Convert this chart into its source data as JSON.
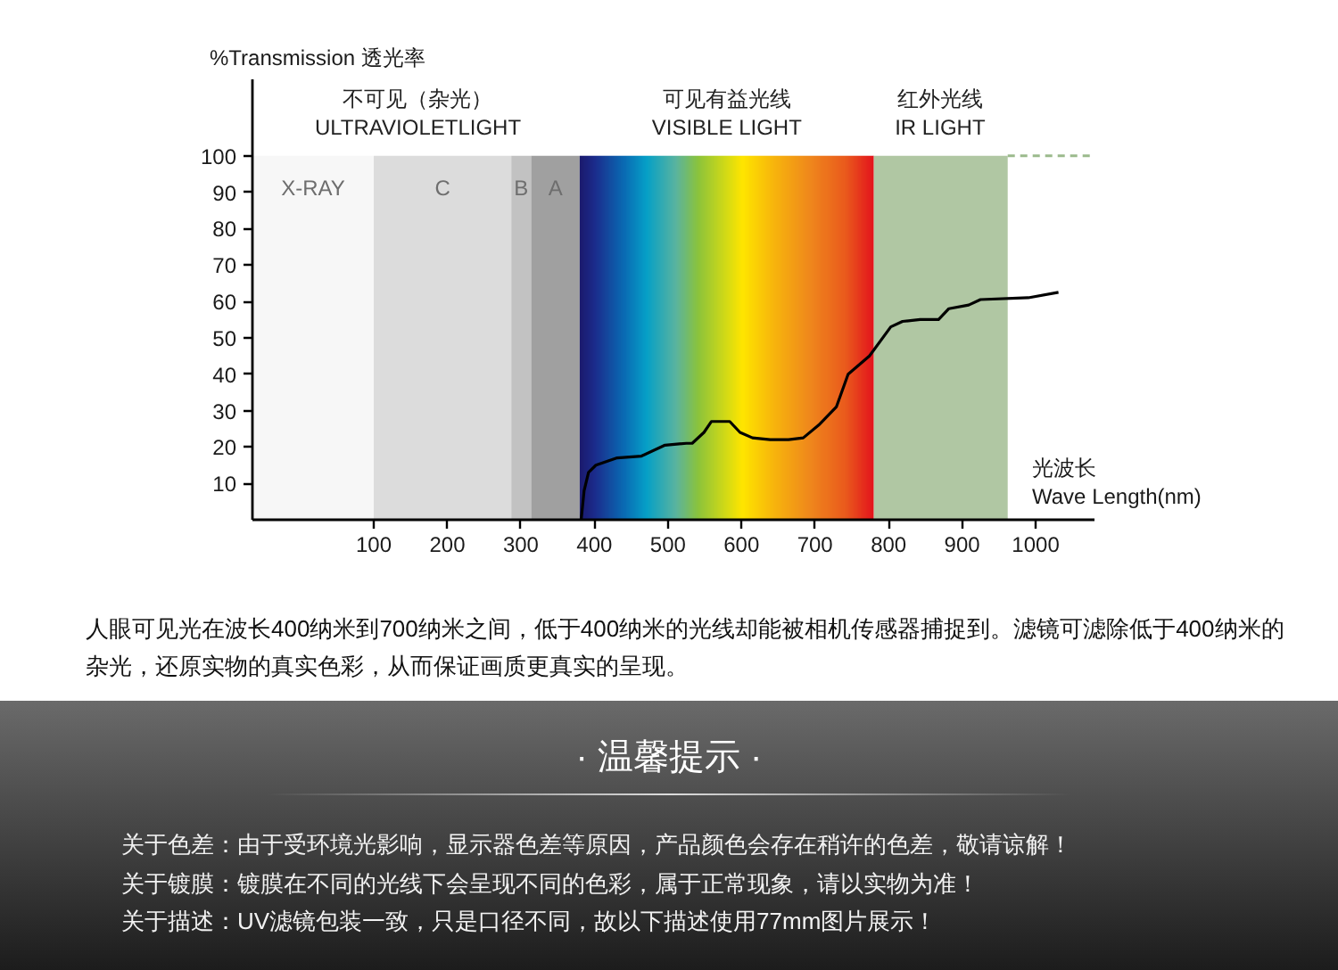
{
  "chart_data": {
    "type": "line",
    "ylabel": "%Transmission 透光率",
    "xlabel": "光波长\nWave Length(nm)",
    "xlim": [
      -65,
      1080
    ],
    "ylim": [
      0,
      121
    ],
    "xticks": [
      100,
      200,
      300,
      400,
      500,
      600,
      700,
      800,
      900,
      1000
    ],
    "yticks": [
      10,
      20,
      30,
      40,
      50,
      60,
      70,
      80,
      90,
      100
    ],
    "grid": false,
    "marker": "none",
    "bands": [
      {
        "axis": "x",
        "from": -65,
        "to": 100,
        "label": "X-RAY",
        "color": "#f7f7f7"
      },
      {
        "axis": "x",
        "from": 100,
        "to": 287,
        "label": "C",
        "color": "#dcdcdc"
      },
      {
        "axis": "x",
        "from": 287,
        "to": 314,
        "label": "B",
        "color": "#c2c2c2"
      },
      {
        "axis": "x",
        "from": 314,
        "to": 380,
        "label": "A",
        "color": "#a0a0a0"
      },
      {
        "axis": "x",
        "from": 380,
        "to": 780
      },
      {
        "axis": "x",
        "from": 780,
        "to": 962,
        "color": "#b0c7a3"
      }
    ],
    "series": [
      {
        "x": [
          382,
          384,
          386,
          392,
          402,
          431,
          464,
          496,
          525,
          533,
          549,
          559,
          584,
          598,
          615,
          639,
          664,
          684,
          705,
          729,
          745,
          774,
          803,
          819,
          843,
          868,
          882,
          909,
          925,
          990,
          1031
        ],
        "values": [
          0,
          4,
          8,
          13,
          15,
          17,
          17.5,
          20.5,
          21,
          21,
          24,
          27,
          27,
          24,
          22.5,
          22,
          22,
          22.5,
          26,
          31,
          40,
          45,
          53,
          54.5,
          55,
          55,
          58,
          59,
          60.5,
          61,
          62.5
        ],
        "color": "#000000"
      },
      {
        "x": [
          962,
          1080
        ],
        "values": [
          100,
          100
        ],
        "color": "#9bba8c",
        "line_style": "dashed"
      }
    ],
    "annotations": [
      {
        "text": "不可见（杂光）\nULTRAVIOLETLIGHT",
        "x": 160,
        "y": 100
      },
      {
        "text": "可见有益光线\nVISIBLE LIGHT",
        "x": 580,
        "y": 100
      },
      {
        "text": "红外光线\nIR LIGHT",
        "x": 870,
        "y": 100
      },
      "人眼可见光在波长400纳米到700纳米之间，低于400纳米的光线却能被相机传感器捕捉到。滤镜可滤除低于400纳米的杂光，还原实物的真实色彩，从而保证画质更真实的呈现。",
      "· 温馨提示 ·",
      "关于色差：由于受环境光影响，显示器色差等原因，产品颜色会存在稍许的色差，敬请谅解！",
      "关于镀膜：镀膜在不同的光线下会呈现不同的色彩，属于正常现象，请以实物为准！",
      "关于描述：UV滤镜包装一致，只是口径不同，故以下描述使用77mm图片展示！"
    ]
  }
}
